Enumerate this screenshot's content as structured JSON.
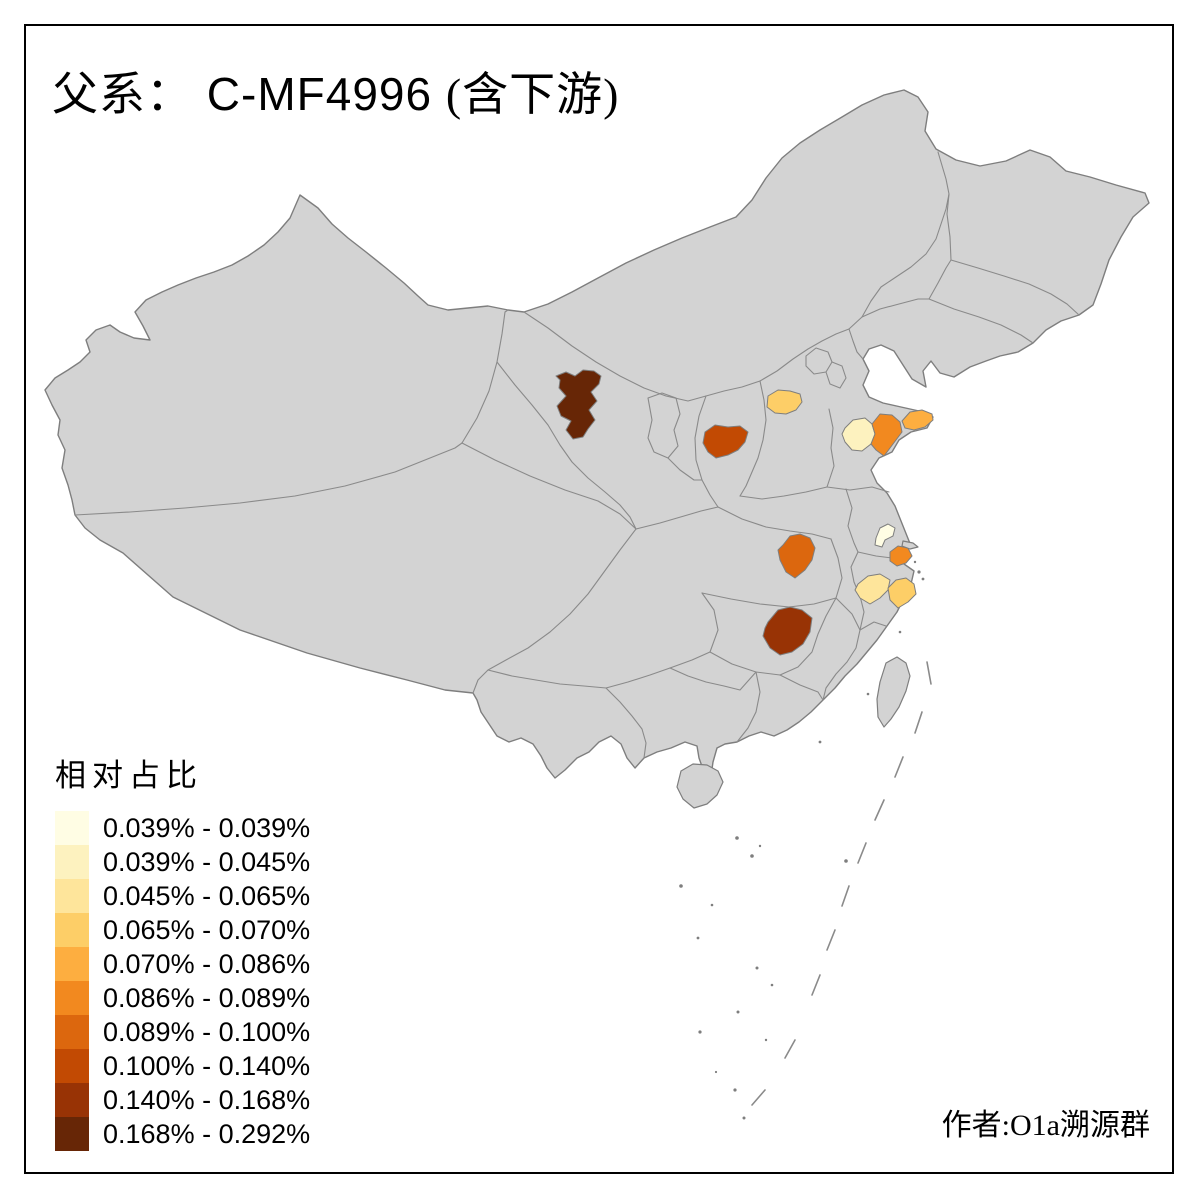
{
  "title": {
    "zh_prefix": "父系：",
    "code": "C-MF4996",
    "zh_suffix": "(含下游)"
  },
  "legend": {
    "title": "相对占比",
    "classes": [
      {
        "label": "0.039% - 0.039%",
        "color": "#FFFDE4"
      },
      {
        "label": "0.039% - 0.045%",
        "color": "#FDF2BF"
      },
      {
        "label": "0.045% - 0.065%",
        "color": "#FEE59B"
      },
      {
        "label": "0.065% - 0.070%",
        "color": "#FDCE67"
      },
      {
        "label": "0.070% - 0.086%",
        "color": "#FDAE40"
      },
      {
        "label": "0.086% - 0.089%",
        "color": "#F2891F"
      },
      {
        "label": "0.089% - 0.100%",
        "color": "#DC670E"
      },
      {
        "label": "0.100% - 0.140%",
        "color": "#C24A03"
      },
      {
        "label": "0.140% - 0.168%",
        "color": "#983305"
      },
      {
        "label": "0.168% - 0.292%",
        "color": "#672606"
      }
    ]
  },
  "credit": "作者:O1a溯源群",
  "map": {
    "land_color": "#D3D3D3",
    "border_color": "#7E7E7E",
    "province_line_color": "#8A8A8A",
    "background": "#FFFFFF",
    "regions": [
      {
        "id": "r-northwest-dark",
        "class_index": 9,
        "range": "0.168% - 0.292%"
      },
      {
        "id": "r-shanxi-south",
        "class_index": 7,
        "range": "0.100% - 0.140%"
      },
      {
        "id": "r-hebei-yellow",
        "class_index": 3,
        "range": "0.065% - 0.070%"
      },
      {
        "id": "r-shandong-pale",
        "class_index": 1,
        "range": "0.039% - 0.045%"
      },
      {
        "id": "r-shandong-orange",
        "class_index": 5,
        "range": "0.086% - 0.089%"
      },
      {
        "id": "r-peninsula-tip",
        "class_index": 4,
        "range": "0.070% - 0.086%"
      },
      {
        "id": "r-hubei-orange",
        "class_index": 6,
        "range": "0.089% - 0.100%"
      },
      {
        "id": "r-jiangsu-cream",
        "class_index": 0,
        "range": "0.039% - 0.039%"
      },
      {
        "id": "r-jiangsu-orange",
        "class_index": 5,
        "range": "0.086% - 0.089%"
      },
      {
        "id": "r-zhejiang-pale",
        "class_index": 2,
        "range": "0.045% - 0.065%"
      },
      {
        "id": "r-zhejiang-yellow",
        "class_index": 3,
        "range": "0.065% - 0.070%"
      },
      {
        "id": "r-hunan-dark",
        "class_index": 8,
        "range": "0.140% - 0.168%"
      }
    ]
  }
}
